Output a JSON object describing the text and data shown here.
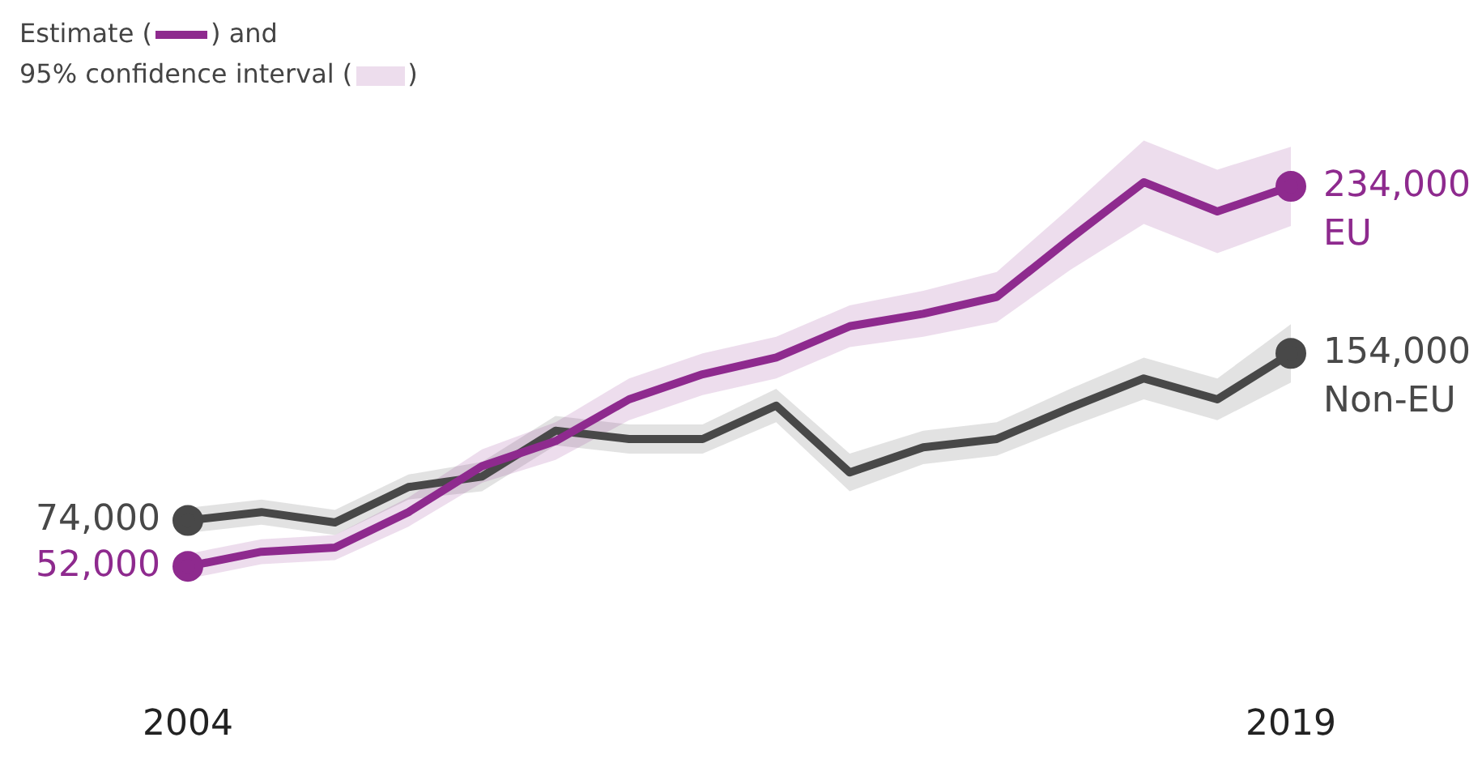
{
  "chart_data": {
    "type": "line",
    "categories": [
      "2004",
      null,
      null,
      null,
      null,
      null,
      null,
      null,
      null,
      null,
      null,
      null,
      null,
      null,
      null,
      "2019"
    ],
    "series": [
      {
        "name": "EU",
        "color": "#8e2a8e",
        "values": [
          52000,
          59000,
          61000,
          78000,
          100000,
          112000,
          132000,
          144000,
          152000,
          167000,
          173000,
          181000,
          209000,
          236000,
          222000,
          234000
        ],
        "lower": [
          46000,
          53000,
          55000,
          71000,
          92000,
          103000,
          122000,
          134000,
          142000,
          157000,
          162000,
          169000,
          194000,
          216000,
          202000,
          215000
        ],
        "upper": [
          58000,
          65000,
          67000,
          85000,
          108000,
          121000,
          142000,
          154000,
          162000,
          177000,
          184000,
          193000,
          224000,
          256000,
          242000,
          253000
        ],
        "value_labels": [
          "52,000",
          null,
          null,
          null,
          null,
          null,
          null,
          null,
          null,
          null,
          null,
          null,
          null,
          null,
          null,
          "234,000"
        ]
      },
      {
        "name": "Non-EU",
        "color": "#484848",
        "values": [
          74000,
          78000,
          73000,
          90000,
          95000,
          117000,
          113000,
          113000,
          129000,
          97000,
          109000,
          113000,
          128000,
          142000,
          132000,
          154000
        ],
        "lower": [
          68000,
          72000,
          67000,
          84000,
          88000,
          110000,
          106000,
          106000,
          121000,
          88000,
          101000,
          105000,
          119000,
          132000,
          122000,
          140000
        ],
        "upper": [
          80000,
          84000,
          79000,
          96000,
          102000,
          124000,
          120000,
          120000,
          137000,
          106000,
          117000,
          121000,
          137000,
          152000,
          142000,
          168000
        ],
        "value_labels": [
          "74,000",
          null,
          null,
          null,
          null,
          null,
          null,
          null,
          null,
          null,
          null,
          null,
          null,
          null,
          null,
          "154,000"
        ]
      }
    ],
    "annotations": [
      "Estimate (",
      ") and",
      "95% confidence interval (",
      ")"
    ],
    "tick_labels": "x",
    "grid": false,
    "legend": false,
    "line_style": "solid"
  }
}
